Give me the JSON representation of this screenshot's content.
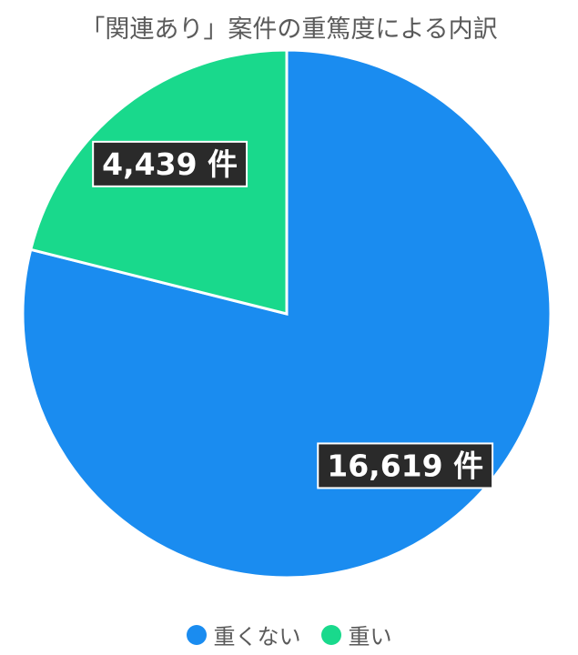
{
  "chart_data": {
    "type": "pie",
    "title": "「関連あり」案件の重篤度による内訳",
    "slices": [
      {
        "name": "重くない",
        "value": 16619,
        "label": "16,619 件",
        "color": "#1a8cf0"
      },
      {
        "name": "重い",
        "value": 4439,
        "label": "4,439 件",
        "color": "#19d98c"
      }
    ],
    "legend_position": "bottom"
  }
}
